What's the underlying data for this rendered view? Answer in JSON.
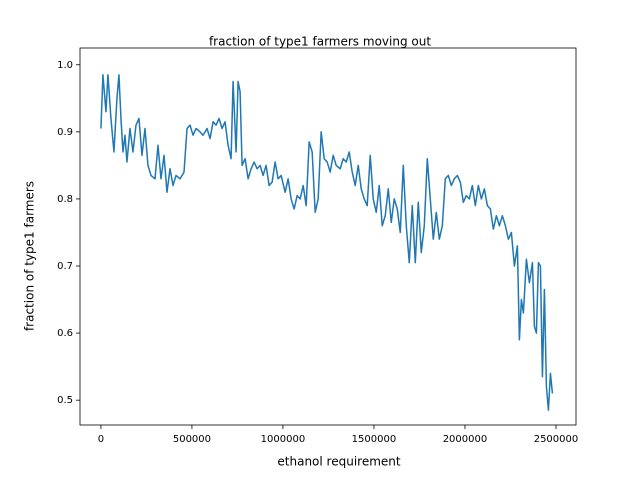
{
  "chart_data": {
    "type": "line",
    "title": "fraction of type1 farmers moving out",
    "x_label": "ethanol requirement",
    "y_label": "fraction of type1 farmers",
    "x": [
      0,
      11000,
      27500,
      38500,
      55000,
      71500,
      88000,
      99000,
      110000,
      121000,
      132000,
      143000,
      159500,
      176000,
      192500,
      209000,
      225500,
      242000,
      258500,
      275000,
      297000,
      313500,
      330000,
      346500,
      363000,
      379500,
      396000,
      412500,
      434500,
      456500,
      473000,
      489500,
      506000,
      522500,
      544500,
      561000,
      583000,
      599500,
      616000,
      632500,
      649000,
      665500,
      682000,
      698500,
      715000,
      726000,
      742500,
      753500,
      764500,
      775500,
      792000,
      808500,
      825000,
      841500,
      858000,
      874500,
      891000,
      907500,
      924000,
      940500,
      957000,
      973500,
      990000,
      1012000,
      1028500,
      1045000,
      1061500,
      1078000,
      1094500,
      1111000,
      1127500,
      1144000,
      1160500,
      1177000,
      1193500,
      1210000,
      1226500,
      1243000,
      1259500,
      1276000,
      1292500,
      1314500,
      1331000,
      1347500,
      1364000,
      1380500,
      1397000,
      1413500,
      1430000,
      1446500,
      1463000,
      1479500,
      1496000,
      1512500,
      1529000,
      1545500,
      1562000,
      1578500,
      1595000,
      1611500,
      1628000,
      1644500,
      1661000,
      1677500,
      1694000,
      1710500,
      1727000,
      1743500,
      1760000,
      1776500,
      1793000,
      1809500,
      1826000,
      1842500,
      1859000,
      1875500,
      1892000,
      1908500,
      1925000,
      1941500,
      1958000,
      1974500,
      1991000,
      2007500,
      2024000,
      2040500,
      2057000,
      2073500,
      2090000,
      2106500,
      2123000,
      2139500,
      2156000,
      2172500,
      2189000,
      2205500,
      2222000,
      2238500,
      2255000,
      2271500,
      2288000,
      2299000,
      2310000,
      2321000,
      2337500,
      2354000,
      2370500,
      2381500,
      2392500,
      2403500,
      2414500,
      2425500,
      2436500,
      2447500,
      2458500,
      2469500,
      2480500
    ],
    "series": [
      {
        "color": "#1f77b4",
        "values": [
          0.905,
          0.985,
          0.93,
          0.985,
          0.92,
          0.87,
          0.95,
          0.985,
          0.92,
          0.87,
          0.895,
          0.855,
          0.905,
          0.87,
          0.91,
          0.92,
          0.865,
          0.905,
          0.85,
          0.835,
          0.83,
          0.88,
          0.83,
          0.865,
          0.81,
          0.845,
          0.82,
          0.835,
          0.83,
          0.84,
          0.905,
          0.91,
          0.895,
          0.905,
          0.9,
          0.895,
          0.905,
          0.89,
          0.915,
          0.91,
          0.92,
          0.905,
          0.915,
          0.88,
          0.86,
          0.975,
          0.87,
          0.975,
          0.96,
          0.85,
          0.86,
          0.83,
          0.845,
          0.855,
          0.845,
          0.85,
          0.835,
          0.85,
          0.82,
          0.825,
          0.855,
          0.83,
          0.835,
          0.81,
          0.83,
          0.8,
          0.785,
          0.805,
          0.8,
          0.82,
          0.79,
          0.885,
          0.87,
          0.78,
          0.8,
          0.9,
          0.86,
          0.855,
          0.84,
          0.865,
          0.85,
          0.845,
          0.86,
          0.855,
          0.87,
          0.84,
          0.82,
          0.85,
          0.815,
          0.8,
          0.79,
          0.865,
          0.8,
          0.78,
          0.82,
          0.76,
          0.775,
          0.815,
          0.765,
          0.8,
          0.785,
          0.75,
          0.85,
          0.76,
          0.705,
          0.79,
          0.705,
          0.795,
          0.72,
          0.76,
          0.86,
          0.8,
          0.74,
          0.78,
          0.74,
          0.76,
          0.83,
          0.835,
          0.82,
          0.83,
          0.835,
          0.825,
          0.795,
          0.805,
          0.8,
          0.82,
          0.79,
          0.82,
          0.8,
          0.815,
          0.79,
          0.785,
          0.755,
          0.775,
          0.76,
          0.775,
          0.76,
          0.74,
          0.75,
          0.7,
          0.73,
          0.59,
          0.65,
          0.63,
          0.71,
          0.675,
          0.705,
          0.61,
          0.6,
          0.705,
          0.7,
          0.535,
          0.665,
          0.52,
          0.485,
          0.54,
          0.51
        ]
      }
    ],
    "xlim": [
      -115000,
      2610000
    ],
    "ylim": [
      0.463,
      1.025
    ],
    "xticks": [
      0,
      500000,
      1000000,
      1500000,
      2000000,
      2500000
    ],
    "yticks": [
      0.5,
      0.6,
      0.7,
      0.8,
      0.9,
      {
        "value": 1,
        "label": "1.0"
      }
    ]
  }
}
